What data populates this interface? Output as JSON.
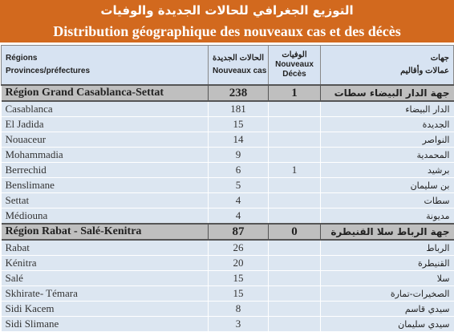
{
  "banner": {
    "title_ar": "التوزيع الجغرافي للحالات الجديدة والوفيات",
    "title_fr": "Distribution géographique des nouveaux cas et des décès"
  },
  "header": {
    "regions": "Régions",
    "provinces": "Provinces/préfectures",
    "new_cases_ar": "الحالات الجديدة",
    "new_cases_fr": "Nouveaux cas",
    "deaths_ar": "الوفيات",
    "deaths_fr_1": "Nouveaux",
    "deaths_fr_2": "Décès",
    "regions_ar_1": "جهات",
    "regions_ar_2": "عمالات وأقاليم"
  },
  "regions": [
    {
      "name_fr": "Région Grand Casablanca-Settat",
      "cases": "238",
      "deaths": "1",
      "name_ar": "جهة الدار البيضاء سطات",
      "rows": [
        {
          "fr": "Casablanca",
          "cases": "181",
          "deaths": "",
          "ar": "الدار البيضاء"
        },
        {
          "fr": "El Jadida",
          "cases": "15",
          "deaths": "",
          "ar": "الجديدة"
        },
        {
          "fr": "Nouaceur",
          "cases": "14",
          "deaths": "",
          "ar": "النواصر"
        },
        {
          "fr": "Mohammadia",
          "cases": "9",
          "deaths": "",
          "ar": "المحمدية"
        },
        {
          "fr": "Berrechid",
          "cases": "6",
          "deaths": "1",
          "ar": "برشيد"
        },
        {
          "fr": "Benslimane",
          "cases": "5",
          "deaths": "",
          "ar": "بن سليمان"
        },
        {
          "fr": "Settat",
          "cases": "4",
          "deaths": "",
          "ar": "سطات"
        },
        {
          "fr": "Médiouna",
          "cases": "4",
          "deaths": "",
          "ar": "مديونة"
        }
      ]
    },
    {
      "name_fr": "Région Rabat - Salé-Kenitra",
      "cases": "87",
      "deaths": "0",
      "name_ar": "جهة الرباط سلا القنيطرة",
      "rows": [
        {
          "fr": "Rabat",
          "cases": "26",
          "deaths": "",
          "ar": "الرباط"
        },
        {
          "fr": "Kénitra",
          "cases": "20",
          "deaths": "",
          "ar": "القنيطرة"
        },
        {
          "fr": "Salé",
          "cases": "15",
          "deaths": "",
          "ar": "سلا"
        },
        {
          "fr": "Skhirate- Témara",
          "cases": "15",
          "deaths": "",
          "ar": "الصخيرات-تمارة"
        },
        {
          "fr": "Sidi Kacem",
          "cases": "8",
          "deaths": "",
          "ar": "سيدي قاسم"
        },
        {
          "fr": "Sidi Slimane",
          "cases": "3",
          "deaths": "",
          "ar": "سيدي سليمان"
        }
      ]
    }
  ]
}
